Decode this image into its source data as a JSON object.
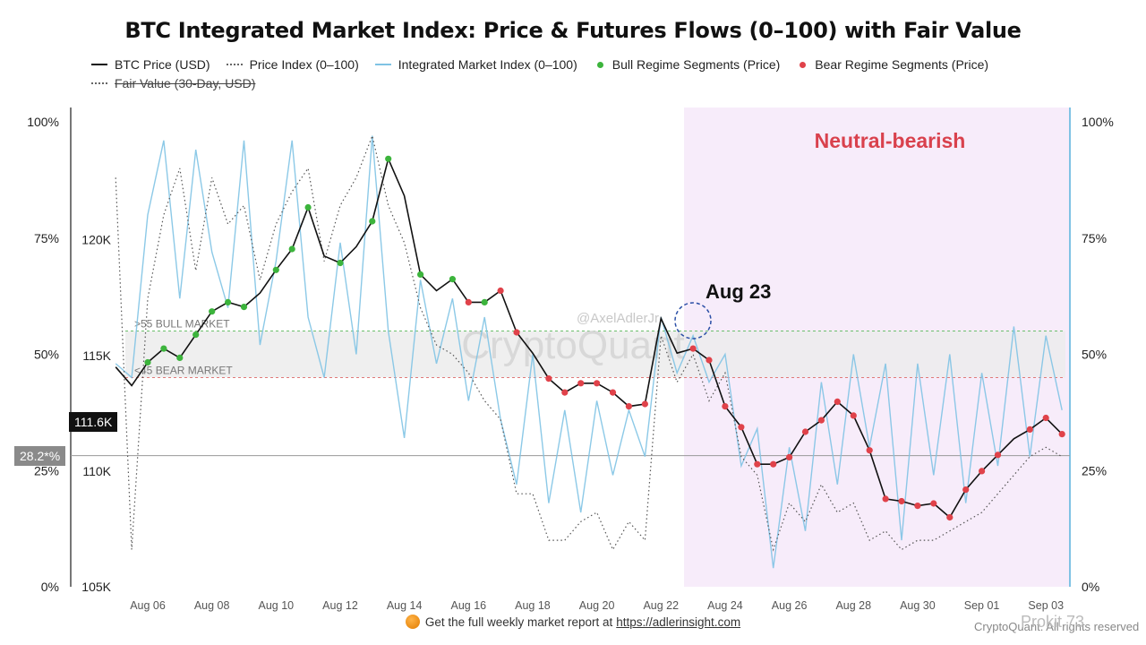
{
  "chart_data": {
    "type": "line",
    "title": "BTC Integrated Market Index: Price & Futures Flows (0–100) with Fair Value",
    "legend": [
      "BTC Price (USD)",
      "Price Index (0–100)",
      "Integrated Market Index (0–100)",
      "Bull Regime Segments (Price)",
      "Bear Regime Segments (Price)",
      "Fair Value (30-Day, USD)"
    ],
    "legend_position": "top",
    "x_ticks": [
      "Aug 06",
      "Aug 08",
      "Aug 10",
      "Aug 12",
      "Aug 14",
      "Aug 16",
      "Aug 18",
      "Aug 20",
      "Aug 22",
      "Aug 24",
      "Aug 26",
      "Aug 28",
      "Aug 30",
      "Sep 01",
      "Sep 03"
    ],
    "x_range": [
      "Aug 05",
      "Sep 04"
    ],
    "y_left_price_ticks": [
      "120K",
      "115K",
      "110K",
      "105K"
    ],
    "y_left_price_range": [
      105000,
      125000
    ],
    "y_pct_ticks": [
      "100%",
      "75%",
      "50%",
      "25%",
      "0%"
    ],
    "y_pct_range": [
      0,
      100
    ],
    "current_price_label": "111.6K",
    "current_index_label": "28.2*%",
    "regime_labels": {
      "bull": ">55 BULL MARKET",
      "bear": "<45 BEAR MARKET"
    },
    "regime_thresholds": [
      45,
      55
    ],
    "annotation_date": "Aug 23",
    "annotation_text": "Neutral-bearish",
    "watermark": "CryptoQuant",
    "watermark_handle": "@AxelAdlerJr",
    "grid": false,
    "series": [
      {
        "name": "BTC Price (USD)",
        "color": "#111111",
        "x": [
          5.0,
          5.5,
          6.0,
          6.5,
          7.0,
          7.5,
          8.0,
          8.5,
          9.0,
          9.5,
          10.0,
          10.5,
          11.0,
          11.5,
          12.0,
          12.5,
          13.0,
          13.5,
          14.0,
          14.5,
          15.0,
          15.5,
          16.0,
          16.5,
          17.0,
          17.5,
          18.0,
          18.5,
          19.0,
          19.5,
          20.0,
          20.5,
          21.0,
          21.5,
          22.0,
          22.5,
          23.0,
          23.5,
          24.0,
          24.5,
          25.0,
          25.5,
          26.0,
          26.5,
          27.0,
          27.5,
          28.0,
          28.5,
          29.0,
          29.5,
          30.0,
          30.5,
          31.0,
          31.5,
          32.0,
          32.5,
          33.0,
          33.5,
          34.0,
          34.5
        ],
        "values": [
          114500,
          113700,
          114700,
          115300,
          114900,
          115900,
          116900,
          117300,
          117100,
          117700,
          118700,
          119600,
          121400,
          119300,
          119000,
          119700,
          120800,
          123500,
          121900,
          118500,
          117800,
          118300,
          117300,
          117300,
          117800,
          116000,
          115100,
          114000,
          113400,
          113800,
          113800,
          113400,
          112800,
          112900,
          116600,
          115100,
          115300,
          114800,
          112800,
          111900,
          110300,
          110300,
          110600,
          111700,
          112200,
          113000,
          112400,
          110900,
          108800,
          108700,
          108500,
          108600,
          108000,
          109200,
          110000,
          110700,
          111400,
          111800,
          112300,
          111600
        ]
      },
      {
        "name": "Integrated Market Index (0–100)",
        "color": "#7fc3e4",
        "x": [
          5.0,
          5.5,
          6.0,
          6.5,
          7.0,
          7.5,
          8.0,
          8.5,
          9.0,
          9.5,
          10.0,
          10.5,
          11.0,
          11.5,
          12.0,
          12.5,
          13.0,
          13.5,
          14.0,
          14.5,
          15.0,
          15.5,
          16.0,
          16.5,
          17.0,
          17.5,
          18.0,
          18.5,
          19.0,
          19.5,
          20.0,
          20.5,
          21.0,
          21.5,
          22.0,
          22.5,
          23.0,
          23.5,
          24.0,
          24.5,
          25.0,
          25.5,
          26.0,
          26.5,
          27.0,
          27.5,
          28.0,
          28.5,
          29.0,
          29.5,
          30.0,
          30.5,
          31.0,
          31.5,
          32.0,
          32.5,
          33.0,
          33.5,
          34.0,
          34.5
        ],
        "values": [
          48,
          45,
          80,
          96,
          62,
          94,
          72,
          60,
          96,
          52,
          70,
          96,
          58,
          45,
          74,
          50,
          97,
          55,
          32,
          66,
          48,
          62,
          40,
          58,
          36,
          22,
          50,
          18,
          38,
          16,
          40,
          24,
          38,
          28,
          58,
          46,
          54,
          44,
          50,
          26,
          34,
          4,
          30,
          12,
          44,
          22,
          50,
          30,
          48,
          10,
          48,
          24,
          50,
          18,
          46,
          26,
          56,
          28,
          54,
          38
        ]
      },
      {
        "name": "Price Index (0–100)",
        "color": "#555555",
        "x": [
          5.0,
          5.5,
          6.0,
          6.5,
          7.0,
          7.5,
          8.0,
          8.5,
          9.0,
          9.5,
          10.0,
          10.5,
          11.0,
          11.5,
          12.0,
          12.5,
          13.0,
          13.5,
          14.0,
          14.5,
          15.0,
          15.5,
          16.0,
          16.5,
          17.0,
          17.5,
          18.0,
          18.5,
          19.0,
          19.5,
          20.0,
          20.5,
          21.0,
          21.5,
          22.0,
          22.5,
          23.0,
          23.5,
          24.0,
          24.5,
          25.0,
          25.5,
          26.0,
          26.5,
          27.0,
          27.5,
          28.0,
          28.5,
          29.0,
          29.5,
          30.0,
          30.5,
          31.0,
          31.5,
          32.0,
          32.5,
          33.0,
          33.5,
          34.0,
          34.5
        ],
        "values": [
          88,
          8,
          62,
          80,
          90,
          68,
          88,
          78,
          82,
          66,
          78,
          85,
          90,
          70,
          82,
          88,
          97,
          82,
          74,
          60,
          52,
          50,
          46,
          40,
          36,
          20,
          20,
          10,
          10,
          14,
          16,
          8,
          14,
          10,
          54,
          44,
          50,
          40,
          46,
          28,
          24,
          8,
          18,
          14,
          22,
          16,
          18,
          10,
          12,
          8,
          10,
          10,
          12,
          14,
          16,
          20,
          24,
          28,
          30,
          28
        ]
      },
      {
        "name": "Fair Value (30-Day, USD)",
        "color": "#888888",
        "x": [
          5.0,
          9.0,
          13.0,
          17.0,
          21.0,
          25.0,
          29.0,
          34.5
        ],
        "values": [
          null,
          null,
          null,
          null,
          null,
          null,
          null,
          null
        ]
      }
    ]
  },
  "footer": {
    "text": "Get the full weekly market report at",
    "link": "https://adlerinsight.com"
  },
  "brand_left": "CryptoQuant. All rights reserved",
  "brand_right": "Prokit 73"
}
